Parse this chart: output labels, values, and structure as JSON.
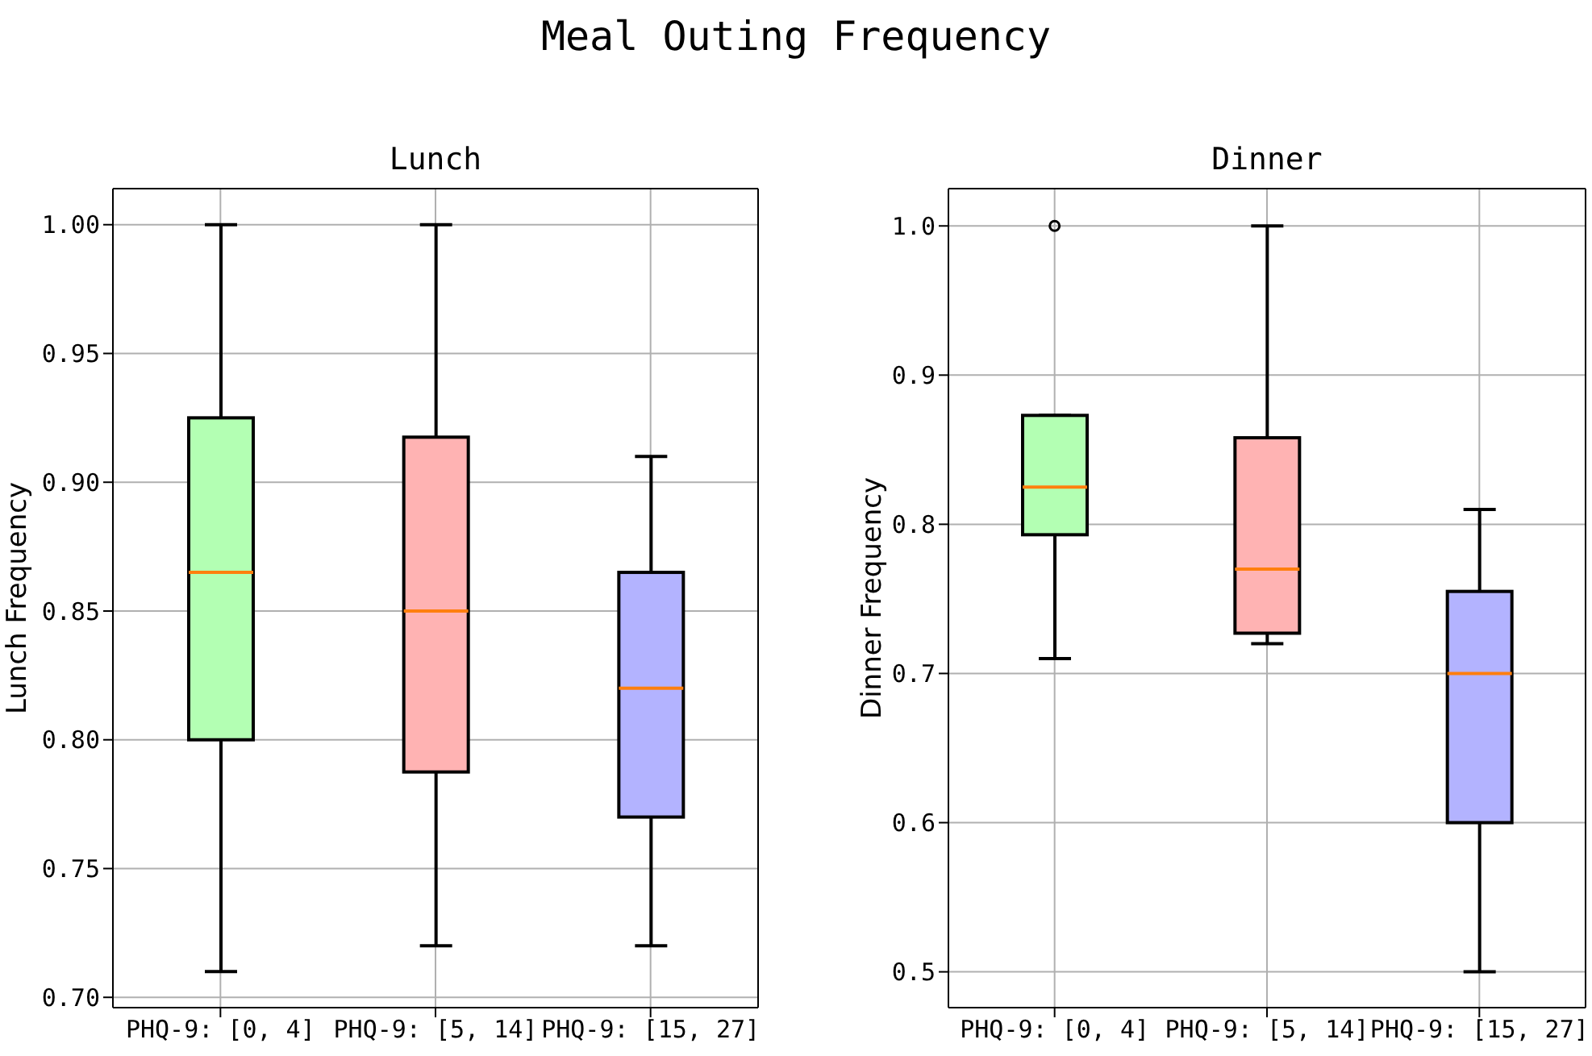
{
  "chart_data": [
    {
      "type": "box",
      "title": "Lunch",
      "ylabel": "Lunch Frequency",
      "annotations": [
        "Meal Outing Frequency"
      ],
      "categories": [
        "PHQ-9: [0, 4]",
        "PHQ-9: [5, 14]",
        "PHQ-9: [15, 27]"
      ],
      "colors": [
        "#b3ffb3",
        "#ffb3b3",
        "#b3b3ff"
      ],
      "boxes": [
        {
          "low": 0.71,
          "q1": 0.8,
          "median": 0.865,
          "q3": 0.925,
          "high": 1.0
        },
        {
          "low": 0.72,
          "q1": 0.7875,
          "median": 0.85,
          "q3": 0.9175,
          "high": 1.0
        },
        {
          "low": 0.72,
          "q1": 0.77,
          "median": 0.82,
          "q3": 0.865,
          "high": 0.91
        }
      ],
      "ylim": [
        0.696,
        1.014
      ],
      "yticks": [
        {
          "value": 0.7,
          "label": "0.70"
        },
        0.75,
        {
          "value": 0.8,
          "label": "0.80"
        },
        0.85,
        {
          "value": 0.9,
          "label": "0.90"
        },
        0.95,
        {
          "value": 1.0,
          "label": "1.00"
        }
      ],
      "grid": true
    },
    {
      "type": "box",
      "title": "Dinner",
      "ylabel": "Dinner Frequency",
      "categories": [
        "PHQ-9: [0, 4]",
        "PHQ-9: [5, 14]",
        "PHQ-9: [15, 27]"
      ],
      "colors": [
        "#b3ffb3",
        "#ffb3b3",
        "#b3b3ff"
      ],
      "boxes": [
        {
          "low": 0.71,
          "q1": 0.793,
          "median": 0.825,
          "q3": 0.873,
          "high": 0.873,
          "outliers": [
            1.0
          ]
        },
        {
          "low": 0.72,
          "q1": 0.727,
          "median": 0.77,
          "q3": 0.858,
          "high": 1.0
        },
        {
          "low": 0.5,
          "q1": 0.6,
          "median": 0.7,
          "q3": 0.755,
          "high": 0.81
        }
      ],
      "ylim": [
        0.476,
        1.025
      ],
      "yticks": [
        0.5,
        0.6,
        0.7,
        0.8,
        0.9,
        {
          "value": 1.0,
          "label": "1.0"
        }
      ],
      "grid": true
    }
  ]
}
